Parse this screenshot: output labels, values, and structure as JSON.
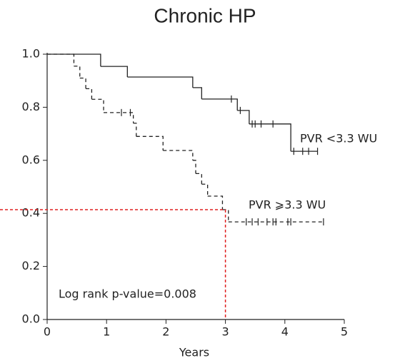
{
  "chart_data": {
    "type": "km",
    "title": "Chronic HP",
    "xlabel": "Years",
    "xlim": [
      0,
      5
    ],
    "ylim": [
      0,
      1
    ],
    "xticks": [
      0,
      1,
      2,
      3,
      4,
      5
    ],
    "yticks": [
      {
        "value": 0,
        "label": "0.0"
      },
      {
        "value": 0.2,
        "label": "0.2"
      },
      {
        "value": 0.4,
        "label": "0.4"
      },
      {
        "value": 0.6,
        "label": "0.6"
      },
      {
        "value": 0.8,
        "label": "0.8"
      },
      {
        "value": 1,
        "label": "1.0"
      }
    ],
    "series": [
      {
        "name": "PVR <3.3 WU",
        "color": "#222222",
        "dashed": false,
        "x": [
          0,
          0.9,
          1.35,
          2.45,
          2.6,
          3.2,
          3.4,
          4.1,
          4.55
        ],
        "values": [
          1,
          0.954,
          0.914,
          0.874,
          0.831,
          0.788,
          0.737,
          0.634,
          0.634
        ],
        "censored": [
          3.1,
          3.25,
          3.45,
          3.5,
          3.6,
          3.8,
          4.15,
          4.3,
          4.4,
          4.55
        ]
      },
      {
        "name": "PVR ⩾3.3 WU",
        "color": "#222222",
        "dashed": true,
        "x": [
          0,
          0.45,
          0.55,
          0.65,
          0.75,
          0.95,
          1.45,
          1.5,
          1.95,
          2.45,
          2.5,
          2.6,
          2.7,
          2.95,
          3.05,
          4.65
        ],
        "values": [
          1,
          0.955,
          0.91,
          0.87,
          0.83,
          0.78,
          0.74,
          0.69,
          0.637,
          0.6,
          0.55,
          0.51,
          0.465,
          0.414,
          0.368,
          0.368
        ],
        "censored": [
          1.25,
          1.4,
          3.35,
          3.45,
          3.55,
          3.7,
          3.8,
          3.85,
          4.05,
          4.1,
          4.65
        ]
      }
    ],
    "reference": {
      "x": 3,
      "y": 0.414,
      "color": "#e02020"
    },
    "annotation": "Log rank p-value=0.008"
  }
}
